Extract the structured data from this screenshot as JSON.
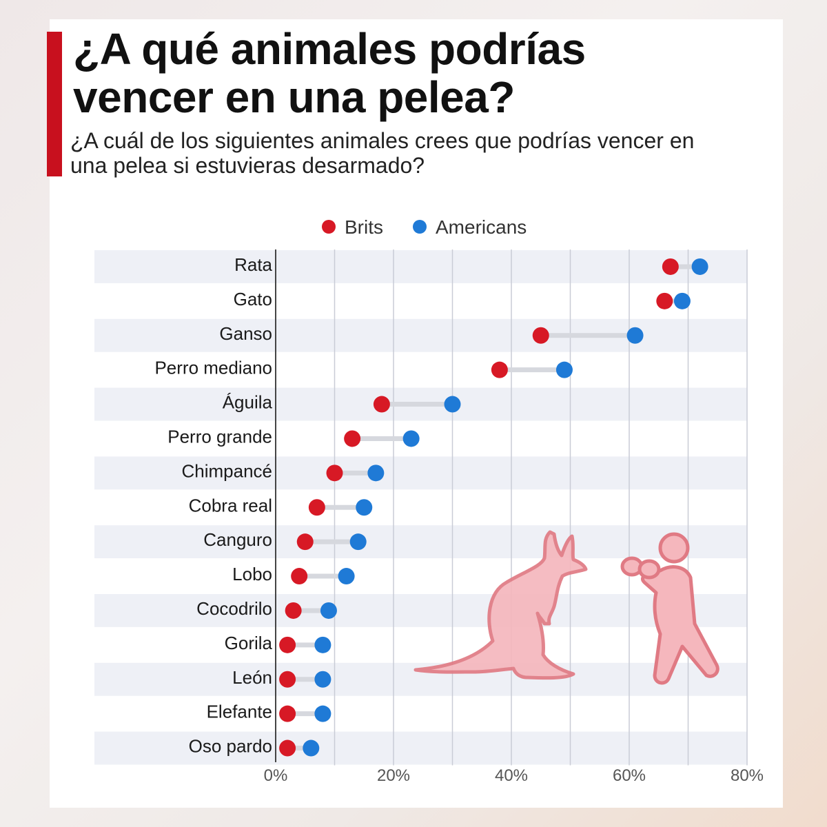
{
  "title": "¿A qué animales podrías vencer en una pelea?",
  "subtitle": "¿A cuál de los siguientes animales crees que podrías vencer en una pelea si estuvieras desarmado?",
  "colors": {
    "accent": "#c8101e",
    "brits": "#d71925",
    "americans": "#1f7ad6"
  },
  "decorations": [
    "kangaroo-illustration",
    "boxer-illustration"
  ],
  "chart_data": {
    "type": "dumbbell",
    "legend": [
      "Brits",
      "Americans"
    ],
    "legend_position": "top-center",
    "categories": [
      "Rata",
      "Gato",
      "Ganso",
      "Perro mediano",
      "Águila",
      "Perro grande",
      "Chimpancé",
      "Cobra real",
      "Canguro",
      "Lobo",
      "Cocodrilo",
      "Gorila",
      "León",
      "Elefante",
      "Oso pardo"
    ],
    "series": [
      {
        "name": "Brits",
        "values": [
          67,
          66,
          45,
          38,
          18,
          13,
          10,
          7,
          5,
          4,
          3,
          2,
          2,
          2,
          2
        ]
      },
      {
        "name": "Americans",
        "values": [
          72,
          69,
          61,
          49,
          30,
          23,
          17,
          15,
          14,
          12,
          9,
          8,
          8,
          8,
          6
        ]
      }
    ],
    "xlim": [
      0,
      80
    ],
    "xticks": [
      "0%",
      "20%",
      "40%",
      "60%",
      "80%"
    ],
    "grid": true
  }
}
